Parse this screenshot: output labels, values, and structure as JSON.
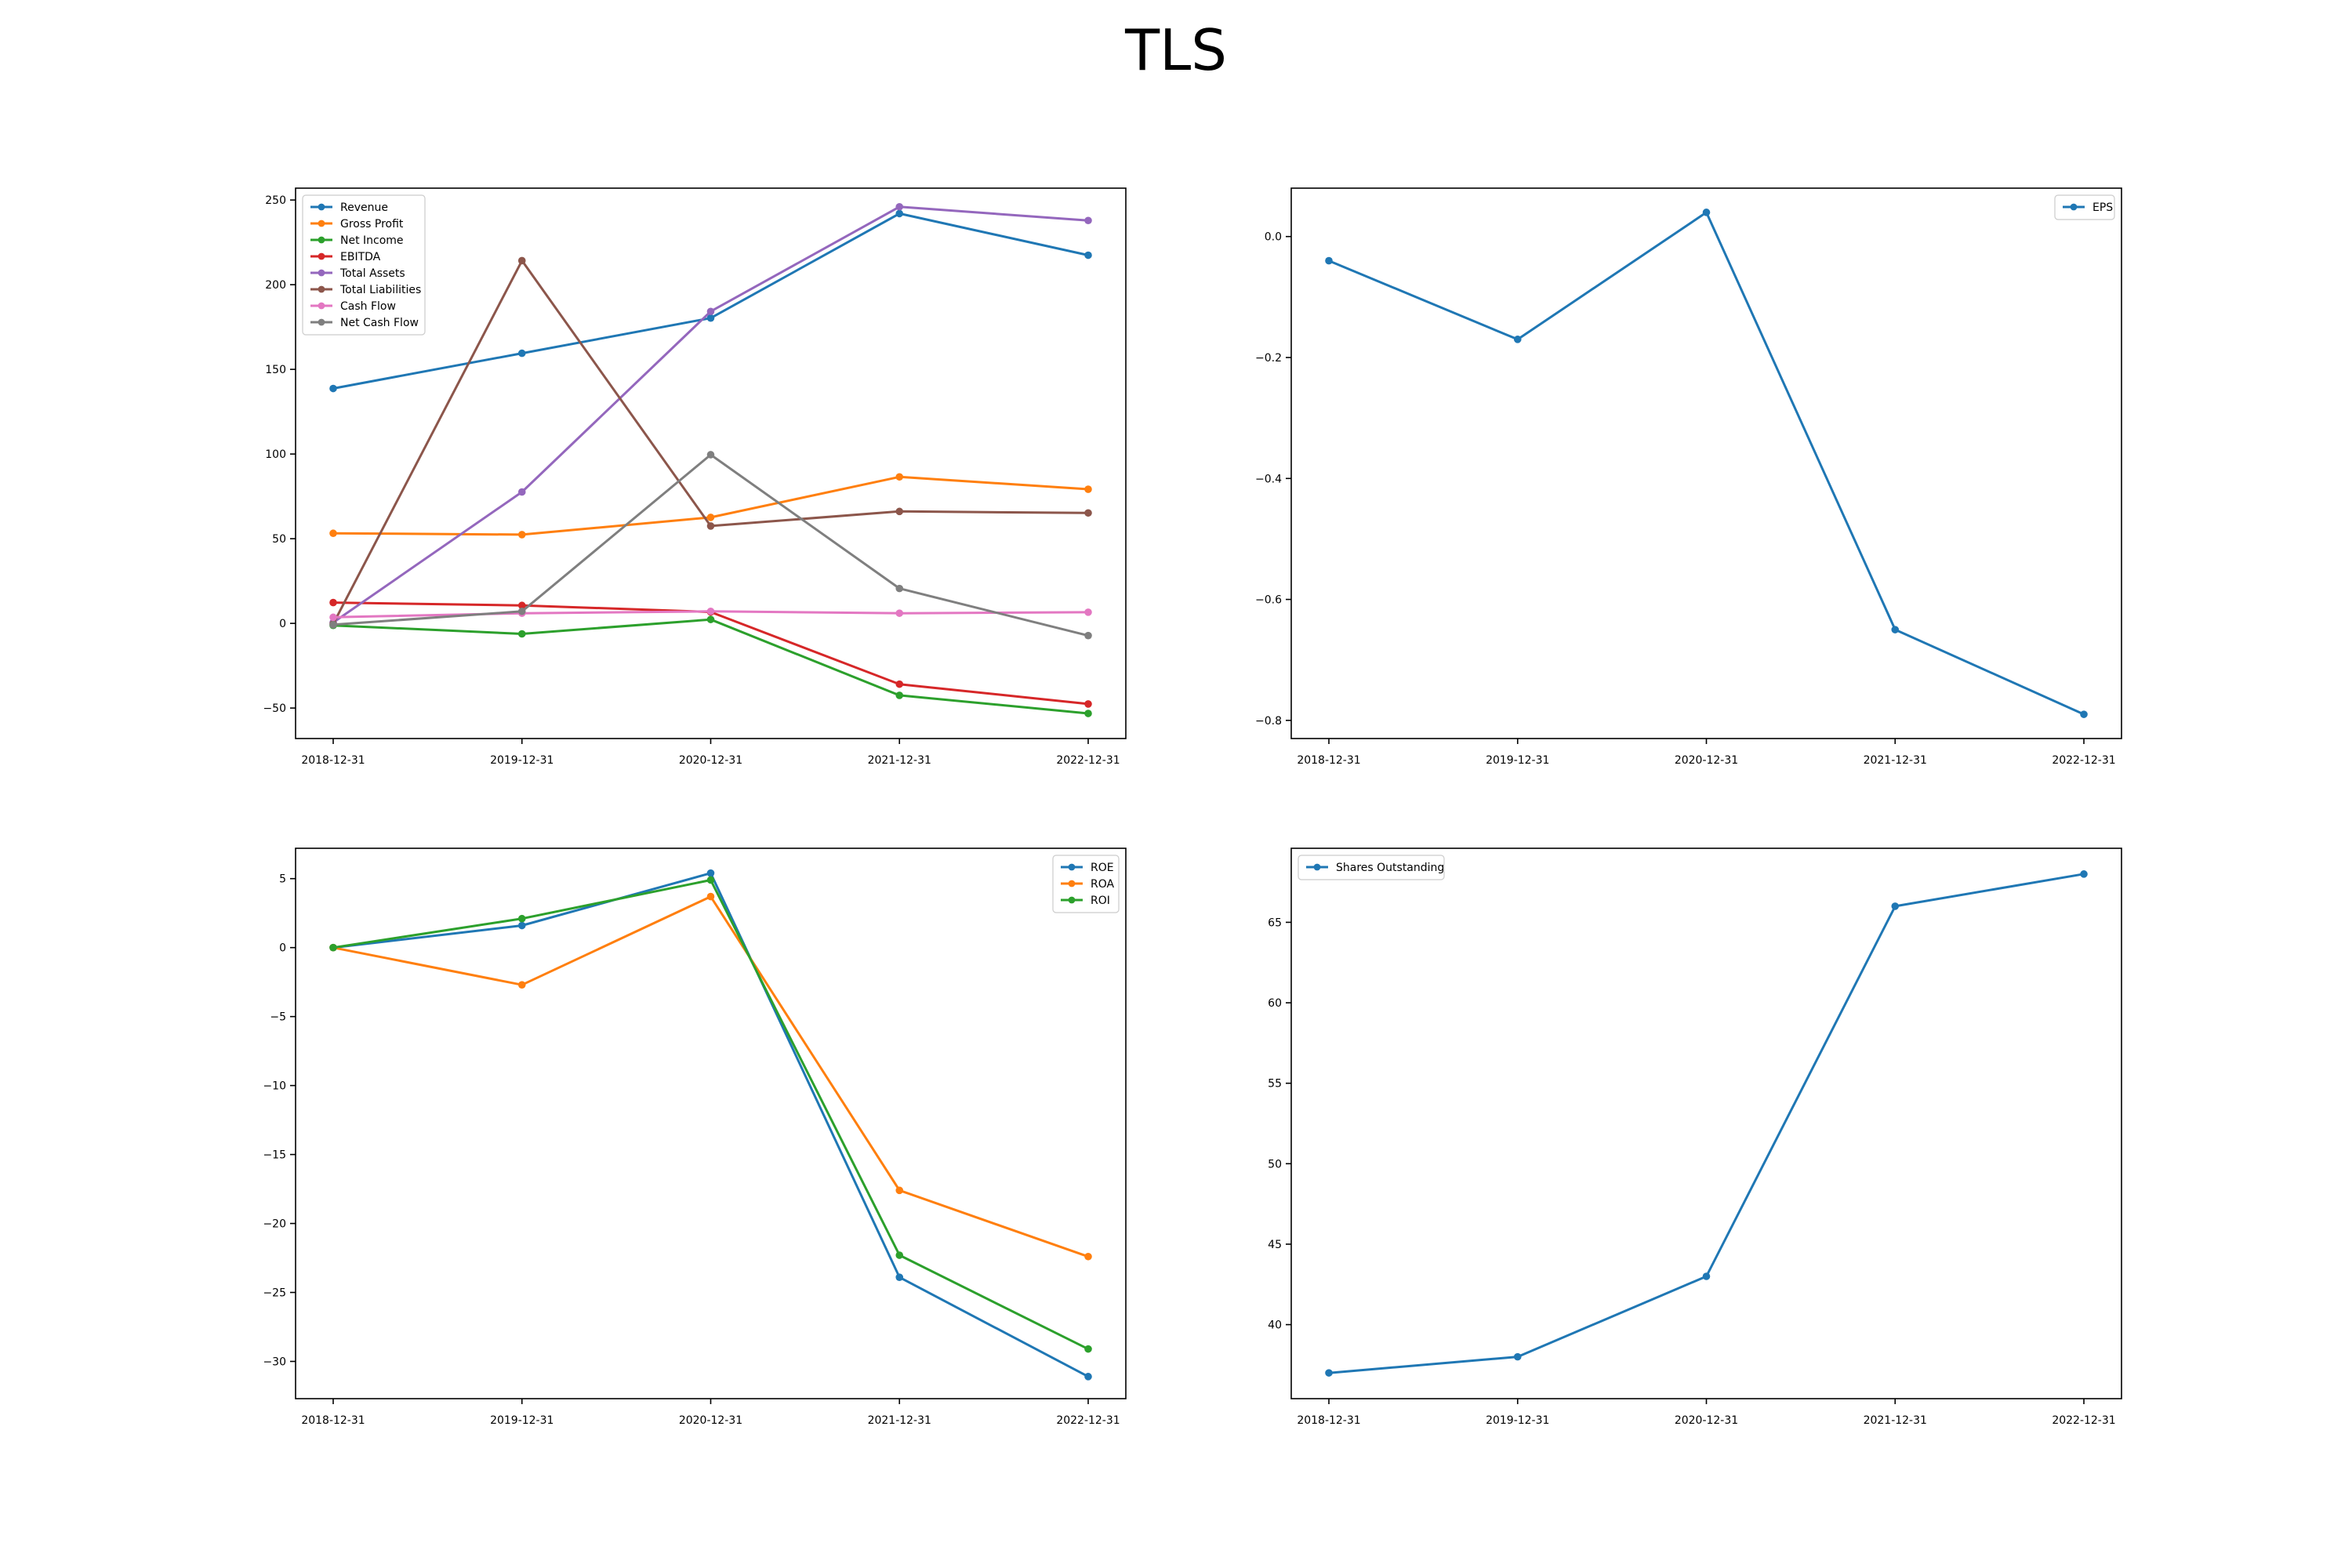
{
  "title": "TLS",
  "chart_data": [
    {
      "type": "line",
      "x": [
        "2018-12-31",
        "2019-12-31",
        "2020-12-31",
        "2021-12-31",
        "2022-12-31"
      ],
      "ylim": [
        -68,
        257
      ],
      "yticks": [
        -50,
        0,
        50,
        100,
        150,
        200,
        250
      ],
      "ytick_labels": [
        "−50",
        "0",
        "50",
        "100",
        "150",
        "200",
        "250"
      ],
      "grid": false,
      "legend": "upper-left",
      "series": [
        {
          "name": "Revenue",
          "color": "#1f77b4",
          "values": [
            138.7,
            159.5,
            180.3,
            242.0,
            217.4
          ]
        },
        {
          "name": "Gross Profit",
          "color": "#ff7f0e",
          "values": [
            53.2,
            52.4,
            62.6,
            86.5,
            79.2
          ]
        },
        {
          "name": "Net Income",
          "color": "#2ca02c",
          "values": [
            -1.2,
            -6.2,
            2.3,
            -42.5,
            -53.2
          ]
        },
        {
          "name": "EBITDA",
          "color": "#d62728",
          "values": [
            12.3,
            10.6,
            6.7,
            -35.9,
            -47.6
          ]
        },
        {
          "name": "Total Assets",
          "color": "#9467bd",
          "values": [
            0.5,
            77.6,
            184.2,
            246.0,
            237.9
          ]
        },
        {
          "name": "Total Liabilities",
          "color": "#8c564b",
          "values": [
            -0.3,
            214.2,
            57.5,
            66.1,
            65.2
          ]
        },
        {
          "name": "Cash Flow",
          "color": "#e377c2",
          "values": [
            3.6,
            6.0,
            7.1,
            6.0,
            6.6
          ]
        },
        {
          "name": "Net Cash Flow",
          "color": "#7f7f7f",
          "values": [
            -0.8,
            7.1,
            99.6,
            20.6,
            -7.2
          ]
        }
      ]
    },
    {
      "type": "line",
      "x": [
        "2018-12-31",
        "2019-12-31",
        "2020-12-31",
        "2021-12-31",
        "2022-12-31"
      ],
      "ylim": [
        -0.83,
        0.08
      ],
      "yticks": [
        -0.8,
        -0.6,
        -0.4,
        -0.2,
        0.0
      ],
      "ytick_labels": [
        "−0.8",
        "−0.6",
        "−0.4",
        "−0.2",
        "0.0"
      ],
      "grid": false,
      "legend": "upper-right",
      "series": [
        {
          "name": "EPS",
          "color": "#1f77b4",
          "values": [
            -0.04,
            -0.17,
            0.04,
            -0.65,
            -0.79
          ]
        }
      ]
    },
    {
      "type": "line",
      "x": [
        "2018-12-31",
        "2019-12-31",
        "2020-12-31",
        "2021-12-31",
        "2022-12-31"
      ],
      "ylim": [
        -32.7,
        7.2
      ],
      "yticks": [
        -30,
        -25,
        -20,
        -15,
        -10,
        -5,
        0,
        5
      ],
      "ytick_labels": [
        "−30",
        "−25",
        "−20",
        "−15",
        "−10",
        "−5",
        "0",
        "5"
      ],
      "grid": false,
      "legend": "upper-right",
      "series": [
        {
          "name": "ROE",
          "color": "#1f77b4",
          "values": [
            0.0,
            1.6,
            5.4,
            -23.9,
            -31.1
          ]
        },
        {
          "name": "ROA",
          "color": "#ff7f0e",
          "values": [
            0.0,
            -2.7,
            3.7,
            -17.6,
            -22.4
          ]
        },
        {
          "name": "ROI",
          "color": "#2ca02c",
          "values": [
            0.0,
            2.1,
            4.9,
            -22.3,
            -29.1
          ]
        }
      ]
    },
    {
      "type": "line",
      "x": [
        "2018-12-31",
        "2019-12-31",
        "2020-12-31",
        "2021-12-31",
        "2022-12-31"
      ],
      "ylim": [
        35.4,
        69.6
      ],
      "yticks": [
        40,
        45,
        50,
        55,
        60,
        65
      ],
      "ytick_labels": [
        "40",
        "45",
        "50",
        "55",
        "60",
        "65"
      ],
      "grid": false,
      "legend": "upper-left",
      "series": [
        {
          "name": "Shares Outstanding",
          "color": "#1f77b4",
          "values": [
            37.0,
            38.0,
            43.0,
            66.0,
            68.0
          ]
        }
      ]
    }
  ]
}
